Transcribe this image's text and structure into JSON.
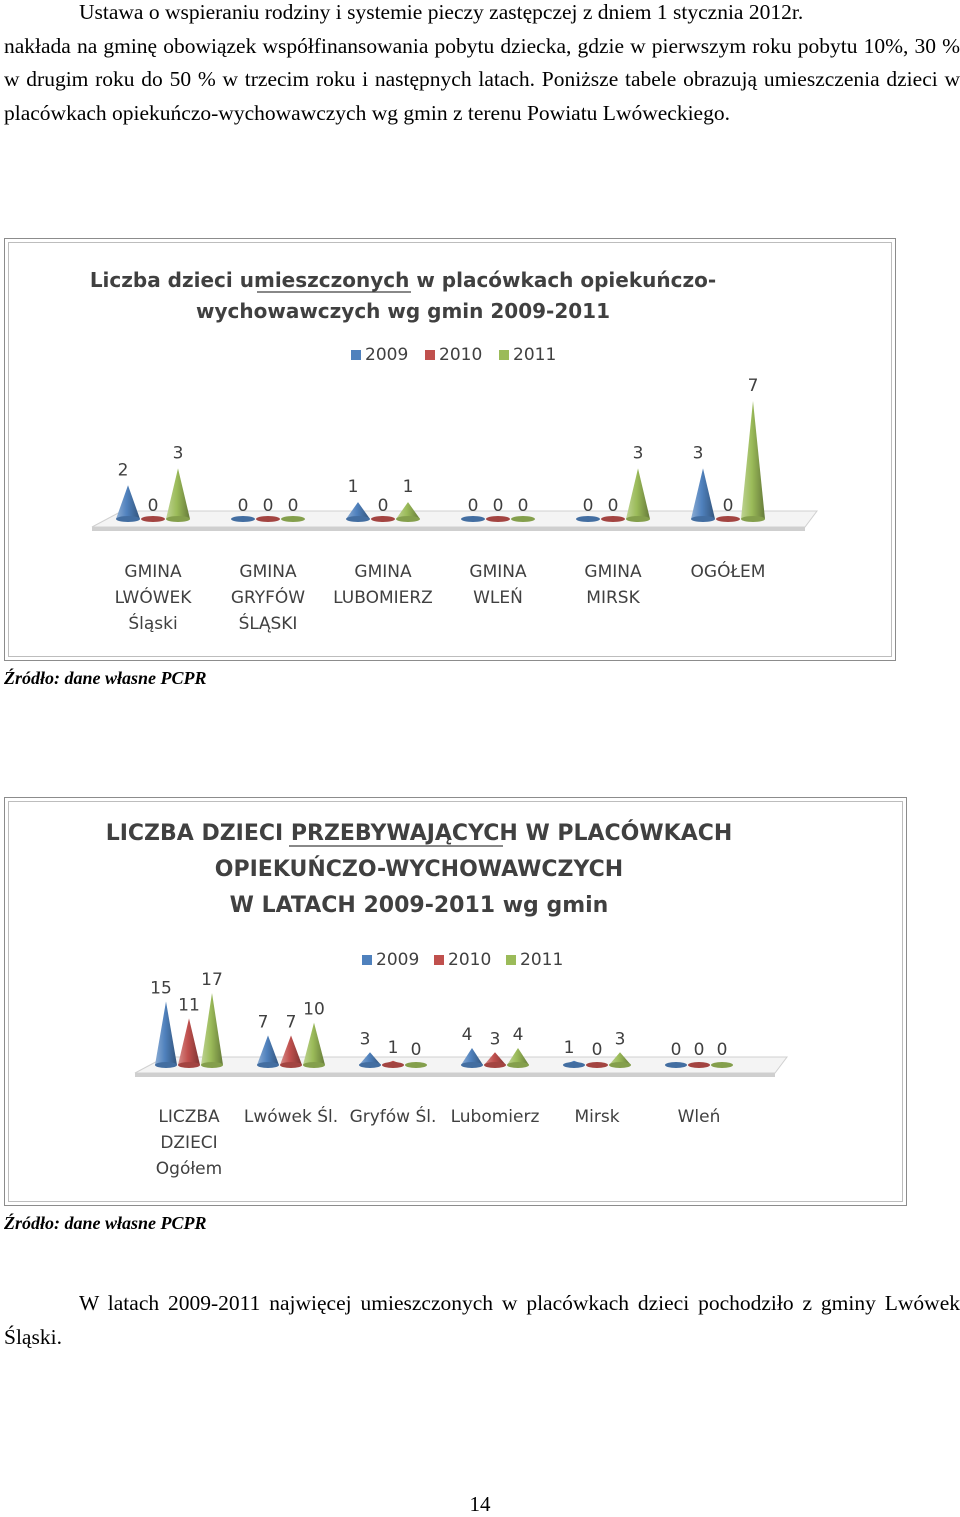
{
  "intro": {
    "line1": "Ustawa o wspieraniu rodziny i systemie pieczy zastępczej z dniem 1 stycznia 2012r.",
    "rest": "nakłada na gminę  obowiązek współfinansowania pobytu dziecka, gdzie w pierwszym roku pobytu 10%, 30 % w drugim roku do 50 %  w  trzecim  roku  i  następnych  latach.  Poniższe tabele obrazują umieszczenia dzieci w placówkach opiekuńczo-wychowawczych wg gmin z terenu Powiatu Lwóweckiego."
  },
  "source1": "Źródło: dane własne PCPR",
  "source2": "Źródło: dane własne PCPR",
  "conclusion": "W latach 2009-2011 najwięcej umieszczonych w placówkach dzieci pochodziło z gminy Lwówek Śląski.",
  "page_number": "14",
  "colors": {
    "s2009": "#4f81bd",
    "s2010": "#c0504d",
    "s2011": "#9bbb59"
  },
  "chart_data": [
    {
      "type": "bar",
      "shape": "cone",
      "title_lines": [
        "Liczba  dzieci  umieszczonych w placówkach opiekuńczo-",
        "wychowawczych wg gmin  2009-2011"
      ],
      "underlined": "umieszczonych",
      "legend": [
        "2009",
        "2010",
        "2011"
      ],
      "categories": [
        [
          "GMINA",
          "LWÓWEK",
          "Śląski"
        ],
        [
          "GMINA",
          "GRYFÓW",
          "ŚLĄSKI"
        ],
        [
          "GMINA",
          "LUBOMIERZ"
        ],
        [
          "GMINA",
          "WLEŃ"
        ],
        [
          "GMINA",
          "MIRSK"
        ],
        [
          "OGÓŁEM"
        ]
      ],
      "series": [
        {
          "name": "2009",
          "values": [
            2,
            0,
            1,
            0,
            0,
            3
          ]
        },
        {
          "name": "2010",
          "values": [
            0,
            0,
            0,
            0,
            0,
            0
          ]
        },
        {
          "name": "2011",
          "values": [
            3,
            0,
            1,
            0,
            3,
            7
          ]
        }
      ]
    },
    {
      "type": "bar",
      "shape": "cone",
      "title_lines": [
        "LICZBA DZIECI PRZEBYWAJĄCYCH  W PLACÓWKACH",
        "OPIEKUŃCZO-WYCHOWAWCZYCH",
        "W LATACH 2009-2011  wg gmin"
      ],
      "underlined": "PRZEBYWAJĄCYCH",
      "legend": [
        "2009",
        "2010",
        "2011"
      ],
      "categories": [
        [
          "LICZBA",
          "DZIECI",
          "Ogółem"
        ],
        [
          "Lwówek Śl."
        ],
        [
          "Gryfów Śl."
        ],
        [
          "Lubomierz"
        ],
        [
          "Mirsk"
        ],
        [
          "Wleń"
        ]
      ],
      "series": [
        {
          "name": "2009",
          "values": [
            15,
            7,
            3,
            4,
            1,
            0
          ]
        },
        {
          "name": "2010",
          "values": [
            11,
            7,
            1,
            3,
            0,
            0
          ]
        },
        {
          "name": "2011",
          "values": [
            17,
            10,
            0,
            4,
            3,
            0
          ]
        }
      ]
    }
  ]
}
